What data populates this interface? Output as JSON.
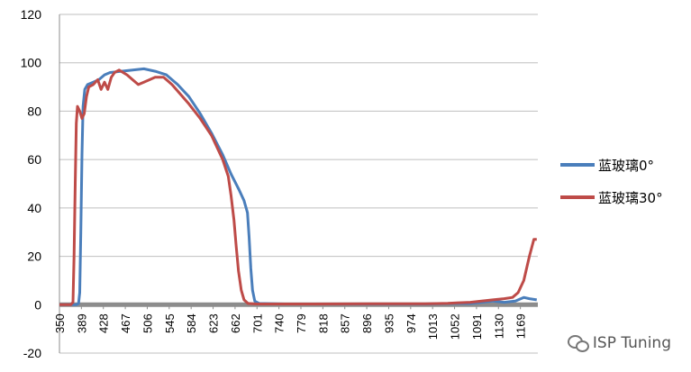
{
  "chart_data": {
    "type": "line",
    "title": "",
    "xlabel": "",
    "ylabel": "",
    "ylim": [
      -20,
      120
    ],
    "yticks": [
      -20,
      0,
      20,
      40,
      60,
      80,
      100,
      120
    ],
    "xlim": [
      350,
      1200
    ],
    "xticks": [
      350,
      389,
      428,
      467,
      506,
      545,
      584,
      623,
      662,
      701,
      740,
      779,
      818,
      857,
      896,
      935,
      974,
      1013,
      1052,
      1091,
      1130,
      1169
    ],
    "grid": "horizontal",
    "legend_position": "right",
    "series": [
      {
        "name": "蓝玻璃0°",
        "color": "#4a7ebb",
        "points": [
          [
            350,
            0
          ],
          [
            380,
            0
          ],
          [
            384,
            0.5
          ],
          [
            386,
            5
          ],
          [
            388,
            30
          ],
          [
            390,
            62
          ],
          [
            392,
            82
          ],
          [
            395,
            89
          ],
          [
            400,
            91
          ],
          [
            410,
            92
          ],
          [
            420,
            93
          ],
          [
            430,
            95
          ],
          [
            440,
            96
          ],
          [
            460,
            96.5
          ],
          [
            480,
            97
          ],
          [
            500,
            97.5
          ],
          [
            520,
            96.5
          ],
          [
            540,
            95
          ],
          [
            560,
            91
          ],
          [
            580,
            86
          ],
          [
            600,
            79
          ],
          [
            620,
            71
          ],
          [
            640,
            62
          ],
          [
            655,
            54
          ],
          [
            668,
            48
          ],
          [
            678,
            43
          ],
          [
            684,
            38
          ],
          [
            687,
            28
          ],
          [
            690,
            15
          ],
          [
            693,
            6
          ],
          [
            697,
            1.5
          ],
          [
            705,
            0.5
          ],
          [
            750,
            0.3
          ],
          [
            800,
            0.3
          ],
          [
            900,
            0.3
          ],
          [
            1000,
            0.3
          ],
          [
            1050,
            0.5
          ],
          [
            1080,
            0.5
          ],
          [
            1100,
            1
          ],
          [
            1120,
            1.5
          ],
          [
            1140,
            1
          ],
          [
            1160,
            1.5
          ],
          [
            1175,
            3
          ],
          [
            1185,
            2.5
          ],
          [
            1198,
            2
          ]
        ]
      },
      {
        "name": "蓝玻璃30°",
        "color": "#be4b48",
        "points": [
          [
            350,
            0
          ],
          [
            370,
            0
          ],
          [
            374,
            1
          ],
          [
            376,
            20
          ],
          [
            378,
            50
          ],
          [
            380,
            75
          ],
          [
            382,
            82
          ],
          [
            386,
            80
          ],
          [
            390,
            77
          ],
          [
            394,
            79
          ],
          [
            398,
            86
          ],
          [
            402,
            90
          ],
          [
            410,
            91
          ],
          [
            418,
            93
          ],
          [
            424,
            89
          ],
          [
            430,
            92
          ],
          [
            436,
            89
          ],
          [
            442,
            94
          ],
          [
            448,
            96
          ],
          [
            456,
            97
          ],
          [
            470,
            95
          ],
          [
            480,
            93
          ],
          [
            490,
            91
          ],
          [
            500,
            92
          ],
          [
            510,
            93
          ],
          [
            520,
            94
          ],
          [
            535,
            94
          ],
          [
            550,
            91
          ],
          [
            565,
            87
          ],
          [
            580,
            83
          ],
          [
            600,
            77
          ],
          [
            620,
            70
          ],
          [
            640,
            60
          ],
          [
            650,
            53
          ],
          [
            655,
            45
          ],
          [
            660,
            35
          ],
          [
            664,
            24
          ],
          [
            668,
            14
          ],
          [
            673,
            6
          ],
          [
            678,
            2
          ],
          [
            685,
            0.5
          ],
          [
            700,
            0.3
          ],
          [
            750,
            0.3
          ],
          [
            800,
            0.3
          ],
          [
            900,
            0.4
          ],
          [
            1000,
            0.4
          ],
          [
            1040,
            0.6
          ],
          [
            1060,
            0.8
          ],
          [
            1080,
            1
          ],
          [
            1100,
            1.5
          ],
          [
            1120,
            2
          ],
          [
            1140,
            2.5
          ],
          [
            1155,
            3
          ],
          [
            1165,
            5
          ],
          [
            1175,
            10
          ],
          [
            1185,
            20
          ],
          [
            1193,
            27
          ],
          [
            1198,
            27
          ]
        ]
      }
    ]
  },
  "watermark": {
    "text": "ISP Tuning",
    "icon": "wechat-icon"
  }
}
